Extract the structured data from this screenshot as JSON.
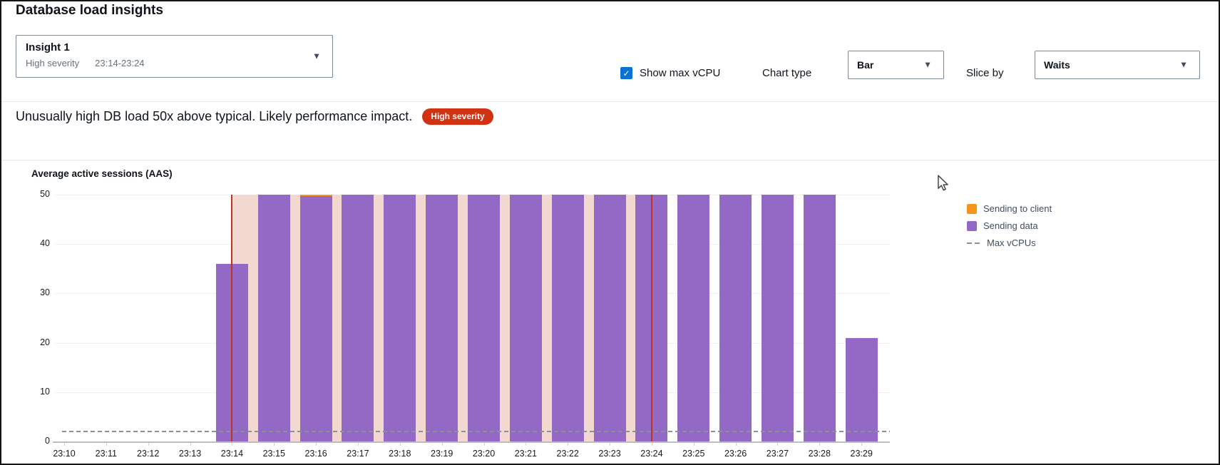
{
  "header": {
    "title": "Database load insights"
  },
  "insight_selector": {
    "title": "Insight 1",
    "severity": "High severity",
    "time_range": "23:14-23:24",
    "dropdown_icon": "chevron-down"
  },
  "controls": {
    "show_max_vcpu_label": "Show max vCPU",
    "show_max_vcpu_checked": true,
    "chart_type_label": "Chart type",
    "chart_type_value": "Bar",
    "slice_by_label": "Slice by",
    "slice_by_value": "Waits"
  },
  "alert": {
    "message": "Unusually high DB load 50x above typical. Likely performance impact.",
    "badge": "High severity"
  },
  "colors": {
    "accent_blue": "#0972d3",
    "badge_red": "#d13212",
    "boundary_red": "#bb3524",
    "highlight_pink": "#f3d8d0",
    "series_orange": "#f7941a",
    "series_purple": "#9469c6",
    "dashed_gray": "#8a9293"
  },
  "chart_data": {
    "type": "bar",
    "title": "Average active sessions (AAS)",
    "xlabel": "",
    "ylabel": "Average active sessions (AAS)",
    "ylim": [
      0,
      50
    ],
    "yticks": [
      0,
      10,
      20,
      30,
      40,
      50
    ],
    "grid": true,
    "legend_position": "right",
    "x": [
      "23:10",
      "23:11",
      "23:12",
      "23:13",
      "23:14",
      "23:15",
      "23:16",
      "23:17",
      "23:18",
      "23:19",
      "23:20",
      "23:21",
      "23:22",
      "23:23",
      "23:24",
      "23:25",
      "23:26",
      "23:27",
      "23:28",
      "23:29"
    ],
    "series": [
      {
        "name": "Sending to client",
        "color": "#f7941a",
        "values": [
          0,
          0,
          0,
          0,
          0,
          0,
          0.3,
          0,
          0,
          0,
          0,
          0,
          0,
          0,
          0,
          0,
          0,
          0,
          0,
          0
        ]
      },
      {
        "name": "Sending data",
        "color": "#9469c6",
        "values": [
          0,
          0,
          0,
          0,
          36,
          50,
          49.7,
          50,
          50,
          50,
          50,
          50,
          50,
          50,
          50,
          50,
          50,
          50,
          50,
          21
        ]
      }
    ],
    "max_vcpus": 2,
    "max_vcpus_label": "Max vCPUs",
    "legend": [
      "Sending to client",
      "Sending data",
      "Max vCPUs"
    ],
    "highlight_region": {
      "start": "23:14",
      "end": "23:24",
      "color": "#f3d8d0",
      "boundary_color": "#bb3524"
    }
  }
}
